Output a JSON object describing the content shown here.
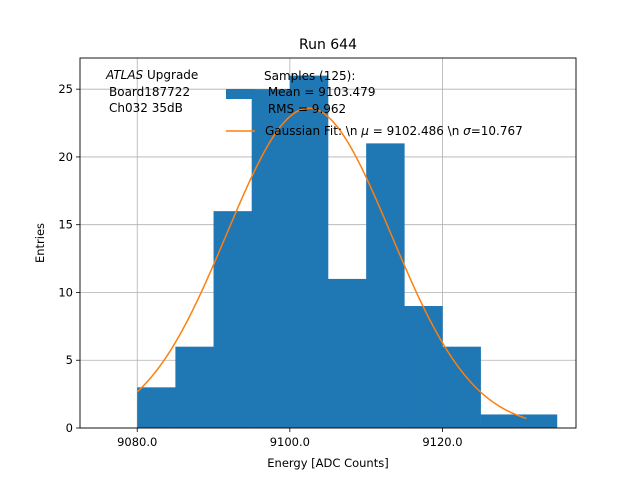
{
  "chart_data": {
    "type": "bar",
    "title": "Run 644",
    "xlabel": "Energy [ADC Counts]",
    "ylabel": "Entries",
    "xlim": [
      9072.5,
      9137.5
    ],
    "ylim": [
      0,
      27.3
    ],
    "grid": true,
    "x_ticks": [
      9080,
      9100,
      9120
    ],
    "x_tick_labels": [
      "9080.0",
      "9100.0",
      "9120.0"
    ],
    "y_ticks": [
      0,
      5,
      10,
      15,
      20,
      25
    ],
    "y_tick_labels": [
      "0",
      "5",
      "10",
      "15",
      "20",
      "25"
    ],
    "annotation": {
      "italic": "ATLAS",
      "rest": " Upgrade",
      "line2": "Board187722",
      "line3": "Ch032 35dB"
    },
    "histogram": {
      "name": "Samples (125):",
      "bin_edges": [
        9080,
        9085,
        9090,
        9095,
        9100,
        9105,
        9110,
        9115,
        9120,
        9125,
        9130,
        9135
      ],
      "counts": [
        3,
        6,
        16,
        25,
        26,
        11,
        21,
        9,
        6,
        1,
        1
      ],
      "color": "#1f77b4"
    },
    "fit": {
      "type": "gaussian",
      "mu": 9102.486,
      "sigma": 10.767,
      "peak": 23.6,
      "x_range": [
        9080,
        9131
      ],
      "color": "#ff7f0e"
    },
    "legend": {
      "placement": "top-right",
      "hist_lines": [
        "Samples (125):",
        " Mean = 9103.479",
        " RMS = 9.962"
      ],
      "fit_label_prefix": "Gaussian Fit: \\n ",
      "fit_mu_symbol": "μ",
      "fit_mu_text": " = 9102.486 \\n ",
      "fit_sigma_symbol": "σ",
      "fit_sigma_text": "=10.767"
    }
  }
}
